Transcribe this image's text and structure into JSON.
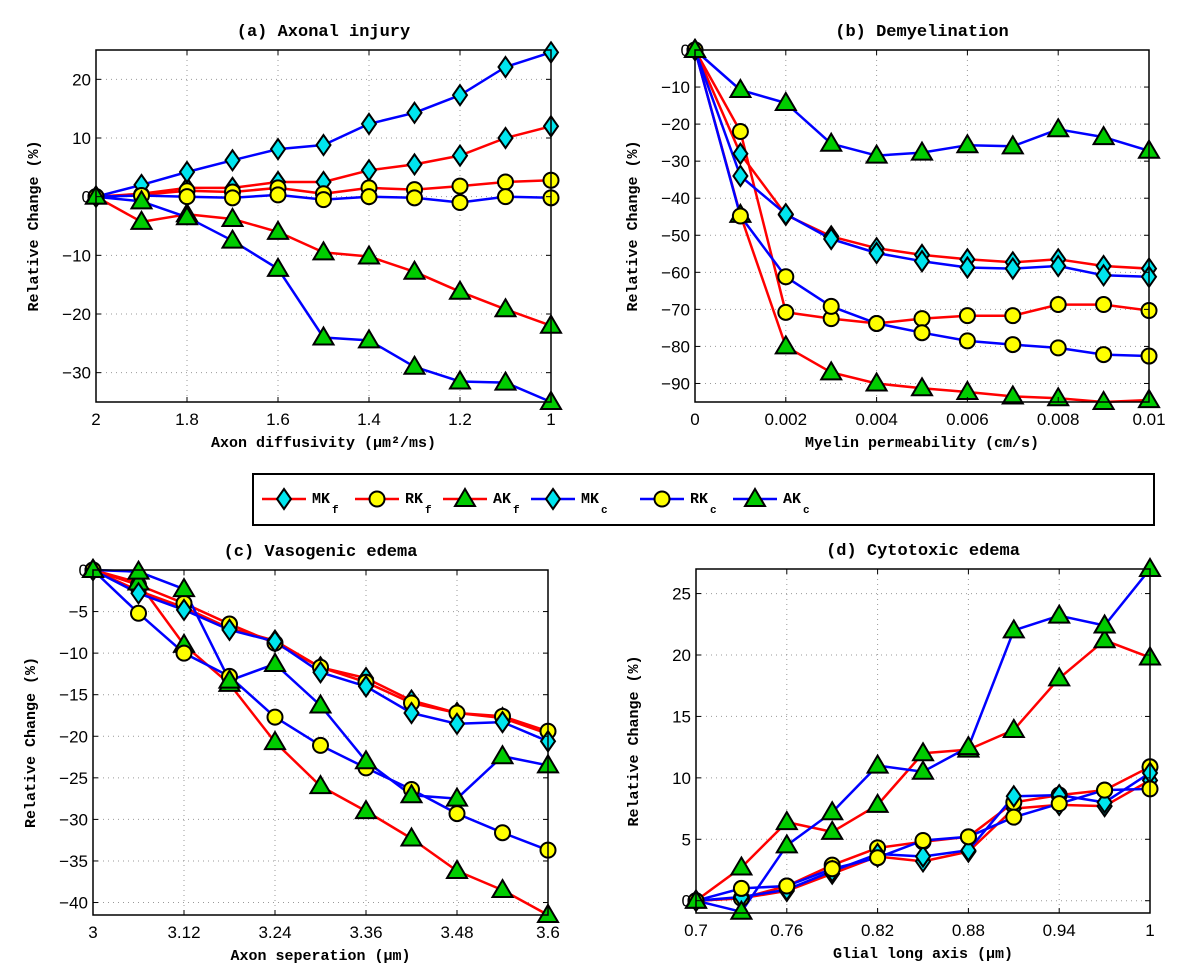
{
  "colors": {
    "fine": "#ff0000",
    "coarse": "#0000ff",
    "diamond": "#00e5ee",
    "circle": "#ffff00",
    "triangle": "#00cc00"
  },
  "legend": {
    "placement": "center",
    "entries": [
      {
        "key": "MKf",
        "label": "MK",
        "sub": "f",
        "line": "fine",
        "marker": "diamond"
      },
      {
        "key": "RKf",
        "label": "RK",
        "sub": "f",
        "line": "fine",
        "marker": "circle"
      },
      {
        "key": "AKf",
        "label": "AK",
        "sub": "f",
        "line": "fine",
        "marker": "triangle"
      },
      {
        "key": "MKc",
        "label": "MK",
        "sub": "c",
        "line": "coarse",
        "marker": "diamond"
      },
      {
        "key": "RKc",
        "label": "RK",
        "sub": "c",
        "line": "coarse",
        "marker": "circle"
      },
      {
        "key": "AKc",
        "label": "AK",
        "sub": "c",
        "line": "coarse",
        "marker": "triangle"
      }
    ]
  },
  "chart_data": [
    {
      "id": "a",
      "type": "line",
      "title": "(a) Axonal injury",
      "xlabel": "Axon diffusivity (μm²/ms)",
      "ylabel": "Relative Change (%)",
      "x": [
        2,
        1.9,
        1.8,
        1.7,
        1.6,
        1.5,
        1.4,
        1.3,
        1.2,
        1.1,
        1
      ],
      "xlim": [
        2,
        1
      ],
      "ylim": [
        -35,
        25
      ],
      "xticks": [
        2,
        1.8,
        1.6,
        1.4,
        1.2,
        1
      ],
      "xticklabels": [
        "2",
        "1.8",
        "1.6",
        "1.4",
        "1.2",
        "1"
      ],
      "yticks": [
        -30,
        -20,
        -10,
        0,
        10,
        20
      ],
      "yticklabels": [
        "−30",
        "−20",
        "−10",
        "0",
        "10",
        "20"
      ],
      "grid": true,
      "series": [
        {
          "name": "MKf",
          "values": [
            0,
            0.5,
            1.5,
            1.5,
            2.5,
            2.5,
            4.5,
            5.5,
            7,
            10,
            12
          ]
        },
        {
          "name": "RKf",
          "values": [
            0,
            0.3,
            1,
            0.8,
            1.5,
            0.5,
            1.5,
            1.2,
            1.8,
            2.5,
            2.8
          ]
        },
        {
          "name": "AKf",
          "values": [
            0,
            -4.3,
            -3,
            -3.8,
            -6,
            -9.5,
            -10.2,
            -12.8,
            -16.2,
            -19.2,
            -22
          ]
        },
        {
          "name": "MKc",
          "values": [
            0,
            2,
            4.2,
            6.2,
            8.1,
            8.8,
            12.4,
            14.3,
            17.3,
            22.1,
            24.6
          ]
        },
        {
          "name": "RKc",
          "values": [
            0,
            0.2,
            0,
            -0.2,
            0.3,
            -0.5,
            0,
            -0.2,
            -1,
            0,
            -0.2
          ]
        },
        {
          "name": "AKc",
          "values": [
            0,
            -0.8,
            -3.5,
            -7.5,
            -12.3,
            -24,
            -24.5,
            -29,
            -31.5,
            -31.7,
            -35
          ]
        }
      ]
    },
    {
      "id": "b",
      "type": "line",
      "title": "(b) Demyelination",
      "xlabel": "Myelin permeability (cm/s)",
      "ylabel": "Relative Change (%)",
      "x": [
        0,
        0.001,
        0.002,
        0.003,
        0.004,
        0.005,
        0.006,
        0.007,
        0.008,
        0.009,
        0.01
      ],
      "xlim": [
        0,
        0.01
      ],
      "ylim": [
        -95,
        0
      ],
      "xticks": [
        0,
        0.002,
        0.004,
        0.006,
        0.008,
        0.01
      ],
      "xticklabels": [
        "0",
        "0.002",
        "0.004",
        "0.006",
        "0.008",
        "0.01"
      ],
      "yticks": [
        -90,
        -80,
        -70,
        -60,
        -50,
        -40,
        -30,
        -20,
        -10,
        0
      ],
      "yticklabels": [
        "−90",
        "−80",
        "−70",
        "−60",
        "−50",
        "−40",
        "−30",
        "−20",
        "−10",
        "0"
      ],
      "grid": true,
      "series": [
        {
          "name": "MKf",
          "values": [
            0,
            -28,
            -44.5,
            -50.3,
            -53.5,
            -55.3,
            -56.5,
            -57.3,
            -56.5,
            -58.3,
            -59
          ]
        },
        {
          "name": "RKf",
          "values": [
            0,
            -22,
            -70.8,
            -72.5,
            -73.8,
            -72.5,
            -71.7,
            -71.7,
            -68.7,
            -68.7,
            -70.3
          ]
        },
        {
          "name": "AKf",
          "values": [
            0,
            -44.5,
            -80,
            -87,
            -90,
            -91.3,
            -92.3,
            -93.5,
            -94,
            -95,
            -94.5
          ]
        },
        {
          "name": "MKc",
          "values": [
            0,
            -34,
            -44.3,
            -51,
            -54.8,
            -57,
            -58.7,
            -59,
            -58.3,
            -60.8,
            -61.2
          ]
        },
        {
          "name": "RKc",
          "values": [
            0,
            -44.8,
            -61.2,
            -69.2,
            -73.8,
            -76.3,
            -78.5,
            -79.5,
            -80.4,
            -82.2,
            -82.6
          ]
        },
        {
          "name": "AKc",
          "values": [
            0,
            -10.8,
            -14.3,
            -25.3,
            -28.5,
            -27.7,
            -25.7,
            -26,
            -21.4,
            -23.5,
            -27.2
          ]
        }
      ]
    },
    {
      "id": "c",
      "type": "line",
      "title": "(c) Vasogenic edema",
      "xlabel": "Axon seperation (μm)",
      "ylabel": "Relative Change (%)",
      "x": [
        3,
        3.06,
        3.12,
        3.18,
        3.24,
        3.3,
        3.36,
        3.42,
        3.48,
        3.54,
        3.6
      ],
      "xlim": [
        3,
        3.6
      ],
      "ylim": [
        -41.5,
        0
      ],
      "xticks": [
        3,
        3.12,
        3.24,
        3.36,
        3.48,
        3.6
      ],
      "xticklabels": [
        "3",
        "3.12",
        "3.24",
        "3.36",
        "3.48",
        "3.6"
      ],
      "yticks": [
        -40,
        -35,
        -30,
        -25,
        -20,
        -15,
        -10,
        -5,
        0
      ],
      "yticklabels": [
        "−40",
        "−35",
        "−30",
        "−25",
        "−20",
        "−15",
        "−10",
        "−5",
        "0"
      ],
      "grid": true,
      "series": [
        {
          "name": "MKf",
          "values": [
            0,
            -2.5,
            -4.5,
            -7,
            -8.5,
            -11.7,
            -13,
            -15.7,
            -17.2,
            -17.8,
            -19.7
          ]
        },
        {
          "name": "RKf",
          "values": [
            0,
            -1.8,
            -4,
            -6.5,
            -8.8,
            -11.7,
            -13.5,
            -16,
            -17.2,
            -17.6,
            -19.4
          ]
        },
        {
          "name": "AKf",
          "values": [
            0,
            -1.5,
            -9,
            -13.7,
            -20.7,
            -26,
            -29,
            -32.3,
            -36.2,
            -38.5,
            -41.5
          ]
        },
        {
          "name": "MKc",
          "values": [
            0,
            -2.8,
            -4.8,
            -7.2,
            -8.6,
            -12.3,
            -14,
            -17.2,
            -18.5,
            -18.3,
            -20.6
          ]
        },
        {
          "name": "RKc",
          "values": [
            0,
            -5.2,
            -10,
            -12.8,
            -17.7,
            -21.1,
            -23.8,
            -26.4,
            -29.3,
            -31.6,
            -33.7
          ]
        },
        {
          "name": "AKc",
          "values": [
            0,
            -0.2,
            -2.3,
            -13.3,
            -11.3,
            -16.3,
            -23,
            -27.1,
            -27.5,
            -22.4,
            -23.5
          ]
        }
      ]
    },
    {
      "id": "d",
      "type": "line",
      "title": "(d) Cytotoxic edema",
      "xlabel": "Glial long axis (μm)",
      "ylabel": "Relative Change (%)",
      "x": [
        0.7,
        0.73,
        0.76,
        0.79,
        0.82,
        0.85,
        0.88,
        0.91,
        0.94,
        0.97,
        1
      ],
      "xlim": [
        0.7,
        1
      ],
      "ylim": [
        -1,
        27
      ],
      "xticks": [
        0.7,
        0.76,
        0.82,
        0.88,
        0.94,
        1
      ],
      "xticklabels": [
        "0.7",
        "0.76",
        "0.82",
        "0.88",
        "0.94",
        "1"
      ],
      "yticks": [
        0,
        5,
        10,
        15,
        20,
        25
      ],
      "yticklabels": [
        "0",
        "5",
        "10",
        "15",
        "20",
        "25"
      ],
      "grid": true,
      "series": [
        {
          "name": "MKf",
          "values": [
            0,
            0.2,
            0.8,
            2.2,
            3.6,
            3.2,
            4,
            7.5,
            7.8,
            7.7,
            9.8
          ]
        },
        {
          "name": "RKf",
          "values": [
            0,
            0.2,
            1.2,
            2.9,
            4.3,
            4.8,
            5.2,
            8,
            8.6,
            9,
            10.9
          ]
        },
        {
          "name": "AKf",
          "values": [
            0,
            2.7,
            6.4,
            5.6,
            7.8,
            12,
            12.3,
            13.9,
            18.1,
            21.2,
            19.8
          ]
        },
        {
          "name": "MKc",
          "values": [
            0,
            0.3,
            0.9,
            2.4,
            3.8,
            3.6,
            4.1,
            8.5,
            8.6,
            8,
            10.4
          ]
        },
        {
          "name": "RKc",
          "values": [
            0,
            1,
            1.2,
            2.6,
            3.5,
            4.9,
            5.2,
            6.8,
            7.9,
            9,
            9.1
          ]
        },
        {
          "name": "AKc",
          "values": [
            0,
            -0.9,
            4.5,
            7.2,
            11,
            10.5,
            12.5,
            22,
            23.2,
            22.4,
            27
          ]
        }
      ]
    }
  ]
}
